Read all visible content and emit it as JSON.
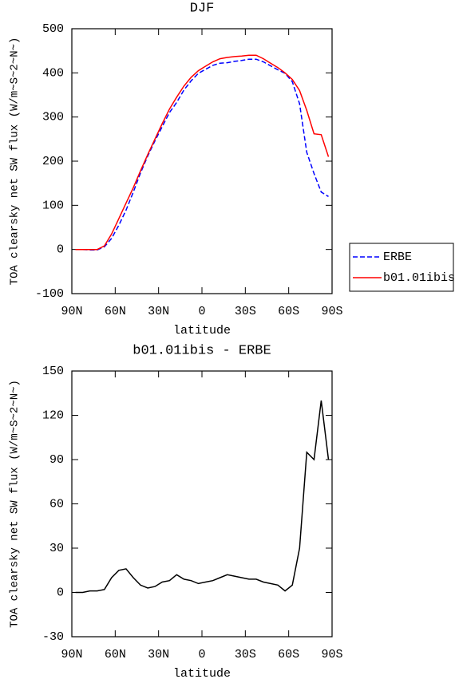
{
  "chart_data": [
    {
      "type": "line",
      "title": "DJF",
      "xlabel": "latitude",
      "ylabel": "TOA clearsky net SW flux (W/m~S~2~N~)",
      "x": [
        87.5,
        82.5,
        77.5,
        72.5,
        67.5,
        62.5,
        57.5,
        52.5,
        47.5,
        42.5,
        37.5,
        32.5,
        27.5,
        22.5,
        17.5,
        12.5,
        7.5,
        2.5,
        -2.5,
        -7.5,
        -12.5,
        -17.5,
        -22.5,
        -27.5,
        -32.5,
        -37.5,
        -42.5,
        -47.5,
        -52.5,
        -57.5,
        -62.5,
        -67.5,
        -72.5,
        -77.5,
        -82.5,
        -87.5
      ],
      "series": [
        {
          "name": "ERBE",
          "color": "#0000ff",
          "dash": true,
          "values": [
            0,
            0,
            -1,
            -1,
            6,
            25,
            55,
            89,
            130,
            173,
            212,
            246,
            278,
            310,
            333,
            361,
            382,
            399,
            408,
            417,
            422,
            423,
            426,
            428,
            431,
            431,
            425,
            416,
            407,
            399,
            380,
            330,
            220,
            172,
            130,
            120
          ]
        },
        {
          "name": "b01.01ibis",
          "color": "#ff0000",
          "dash": false,
          "values": [
            0,
            0,
            0,
            0,
            8,
            35,
            70,
            105,
            140,
            178,
            215,
            250,
            285,
            318,
            345,
            370,
            390,
            405,
            415,
            425,
            432,
            435,
            437,
            438,
            440,
            440,
            432,
            422,
            412,
            400,
            385,
            360,
            315,
            262,
            260,
            210
          ]
        }
      ],
      "xlim": [
        90,
        -90
      ],
      "xticks": [
        {
          "value": 90,
          "label": "90N"
        },
        {
          "value": 60,
          "label": "60N"
        },
        {
          "value": 30,
          "label": "30N"
        },
        0,
        {
          "value": -30,
          "label": "30S"
        },
        {
          "value": -60,
          "label": "60S"
        },
        {
          "value": -90,
          "label": "90S"
        }
      ],
      "ylim": [
        -100,
        500
      ],
      "yticks": [
        -100,
        0,
        100,
        200,
        300,
        400,
        500
      ],
      "legend": "right"
    },
    {
      "type": "line",
      "title": "b01.01ibis - ERBE",
      "xlabel": "latitude",
      "ylabel": "TOA clearsky net SW flux (W/m~S~2~N~)",
      "x": [
        87.5,
        82.5,
        77.5,
        72.5,
        67.5,
        62.5,
        57.5,
        52.5,
        47.5,
        42.5,
        37.5,
        32.5,
        27.5,
        22.5,
        17.5,
        12.5,
        7.5,
        2.5,
        -2.5,
        -7.5,
        -12.5,
        -17.5,
        -22.5,
        -27.5,
        -32.5,
        -37.5,
        -42.5,
        -47.5,
        -52.5,
        -57.5,
        -62.5,
        -67.5,
        -72.5,
        -77.5,
        -82.5,
        -87.5
      ],
      "series": [
        {
          "color": "#000000",
          "dash": false,
          "values": [
            0,
            0,
            1,
            1,
            2,
            10,
            15,
            16,
            10,
            5,
            3,
            4,
            7,
            8,
            12,
            9,
            8,
            6,
            7,
            8,
            10,
            12,
            11,
            10,
            9,
            9,
            7,
            6,
            5,
            1,
            5,
            30,
            95,
            90,
            130,
            90
          ]
        }
      ],
      "xlim": [
        90,
        -90
      ],
      "xticks": [
        {
          "value": 90,
          "label": "90N"
        },
        {
          "value": 60,
          "label": "60N"
        },
        {
          "value": 30,
          "label": "30N"
        },
        0,
        {
          "value": -30,
          "label": "30S"
        },
        {
          "value": -60,
          "label": "60S"
        },
        {
          "value": -90,
          "label": "90S"
        }
      ],
      "ylim": [
        -30,
        150
      ],
      "yticks": [
        -30,
        0,
        30,
        60,
        90,
        120,
        150
      ]
    }
  ]
}
